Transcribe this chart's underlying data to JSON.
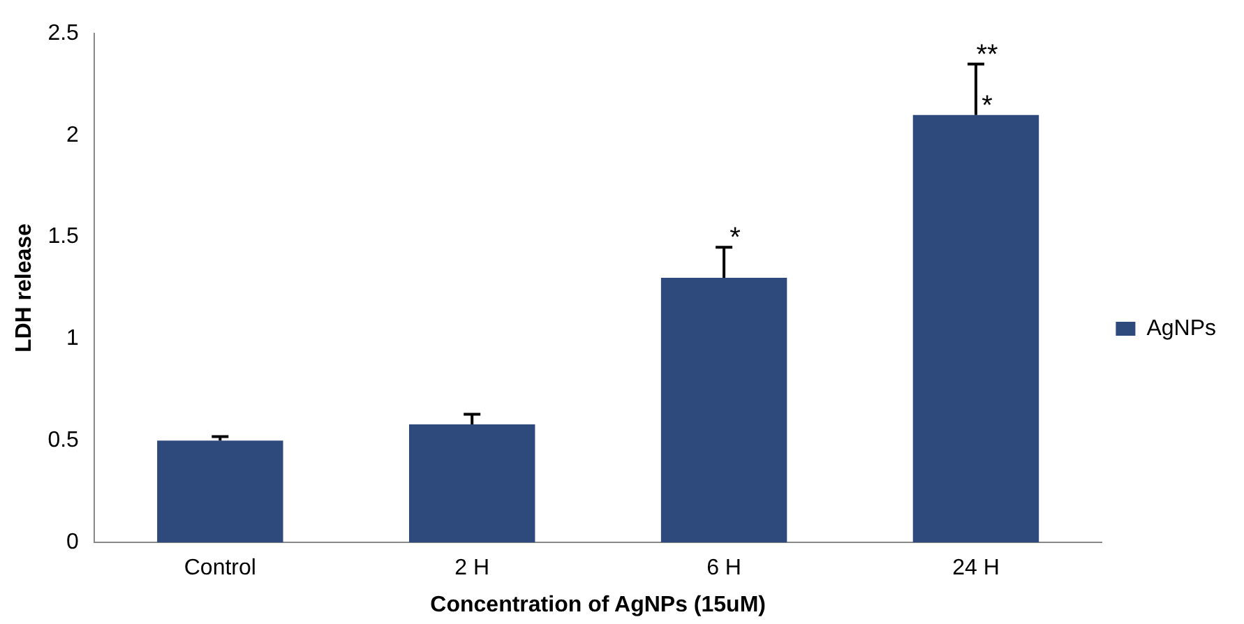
{
  "chart_data": {
    "type": "bar",
    "xlabel": "Concentration of AgNPs (15uM)",
    "ylabel": "LDH release",
    "categories": [
      "Control",
      "2 H",
      "6 H",
      "24 H"
    ],
    "series": [
      {
        "name": "AgNPs",
        "color": "#2e4a7d",
        "values": [
          0.5,
          0.58,
          1.3,
          2.1
        ],
        "errors": [
          [
            0.5,
            0.52
          ],
          [
            0.58,
            0.63
          ],
          [
            1.3,
            1.45
          ],
          [
            2.1,
            2.35
          ]
        ]
      }
    ],
    "ylim": [
      0,
      2.5
    ],
    "yticks": [
      0,
      0.5,
      1,
      1.5,
      2,
      2.5
    ],
    "grid": false,
    "legend": "right",
    "annotations": [
      {
        "text": "*",
        "x": "6 H",
        "y": 1.45
      },
      {
        "text": "*",
        "x": "24 H",
        "y": 2.1
      },
      {
        "text": "**",
        "x": "24 H",
        "y": 2.35
      }
    ]
  }
}
